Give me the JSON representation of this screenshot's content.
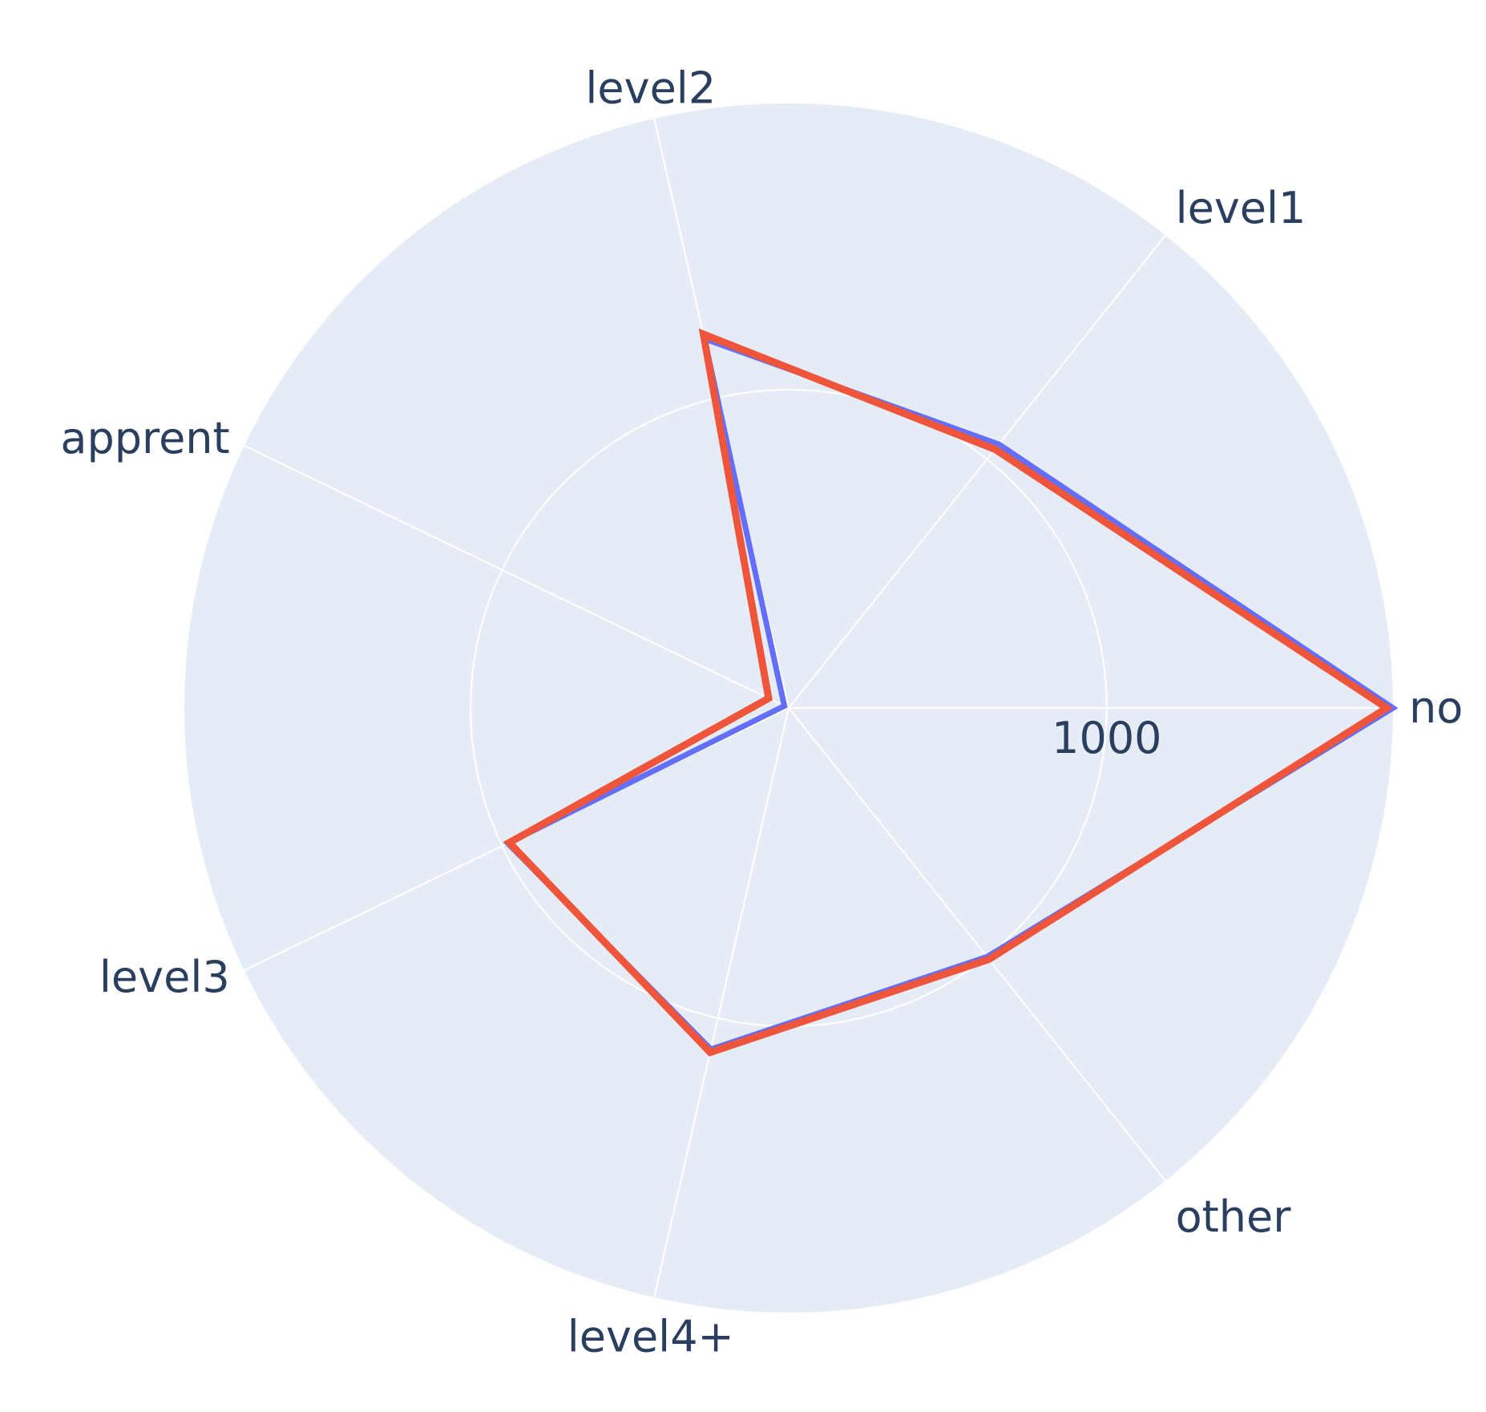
{
  "chart_data": {
    "type": "radar",
    "title": "",
    "categories": [
      "no",
      "level1",
      "level2",
      "apprent",
      "level3",
      "level4+",
      "other"
    ],
    "radial_range": [
      0,
      1900
    ],
    "radial_ticks": [
      1000
    ],
    "grid": true,
    "legend": "none",
    "background_color": "#e5ecf6",
    "series": [
      {
        "color": "#636efa",
        "values": [
          1900,
          1060,
          1190,
          15,
          980,
          1100,
          1000
        ]
      },
      {
        "color": "#ef553b",
        "values": [
          1880,
          1040,
          1205,
          70,
          975,
          1110,
          1010
        ]
      }
    ]
  }
}
